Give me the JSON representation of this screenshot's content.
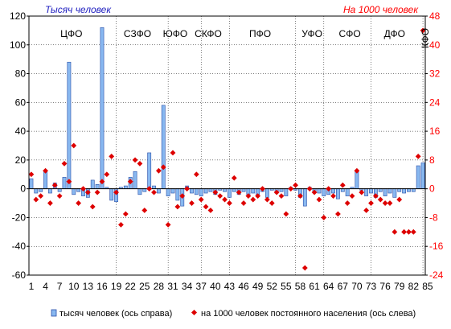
{
  "chart_data": {
    "type": "bar+scatter",
    "left_axis_title": "Тысяч человек",
    "right_axis_title": "На 1000 человек",
    "left_axis": {
      "min": -60,
      "max": 120,
      "step": 20,
      "tick_labels": [
        "-60",
        "-40",
        "-20",
        "0",
        "20",
        "40",
        "60",
        "80",
        "100",
        "120"
      ]
    },
    "right_axis": {
      "min": -24,
      "max": 48,
      "step": 8,
      "tick_labels": [
        "-24",
        "-16",
        "-8",
        "0",
        "8",
        "16",
        "24",
        "32",
        "40",
        "48"
      ]
    },
    "x_tick_labels": [
      "1",
      "4",
      "7",
      "10",
      "13",
      "16",
      "19",
      "22",
      "25",
      "28",
      "31",
      "34",
      "37",
      "40",
      "43",
      "46",
      "49",
      "52",
      "55",
      "58",
      "61",
      "64",
      "67",
      "70",
      "73",
      "76",
      "79",
      "82",
      "85"
    ],
    "x_tick_positions": [
      1,
      4,
      7,
      10,
      13,
      16,
      19,
      22,
      25,
      28,
      31,
      34,
      37,
      40,
      43,
      46,
      49,
      52,
      55,
      58,
      61,
      64,
      67,
      70,
      73,
      76,
      79,
      82,
      85
    ],
    "regions": [
      {
        "label": "ЦФО",
        "center": 9
      },
      {
        "label": "СЗФО",
        "center": 23
      },
      {
        "label": "ЮФО",
        "center": 31
      },
      {
        "label": "СКФО",
        "center": 38
      },
      {
        "label": "ПФО",
        "center": 49
      },
      {
        "label": "УФО",
        "center": 60
      },
      {
        "label": "СФО",
        "center": 68
      },
      {
        "label": "ДФО",
        "center": 77.5
      },
      {
        "label": "КФО",
        "center": 84,
        "vertical": true
      }
    ],
    "region_separators": [
      18.5,
      29.5,
      36.5,
      42.5,
      56.5,
      62.5,
      72.5,
      83.5
    ],
    "series": [
      {
        "name": "тысяч человек (ось справа)",
        "kind": "bar",
        "color": "#88b8f0",
        "values": [
          7,
          -3,
          -2,
          12,
          -3,
          4,
          -2,
          8,
          88,
          -4,
          -2,
          -5,
          -6,
          6,
          3,
          112,
          1,
          -8,
          -9,
          1,
          2,
          8,
          12,
          -4,
          -2,
          25,
          2,
          -3,
          58,
          -5,
          -3,
          -8,
          -12,
          2,
          -3,
          -4,
          -5,
          -3,
          -2,
          -4,
          -1,
          -2,
          -6,
          -2,
          -4,
          -2,
          -4,
          -3,
          -4,
          -2,
          -6,
          -1,
          -3,
          -2,
          -5,
          1,
          -1,
          -6,
          -12,
          1,
          -2,
          -3,
          -5,
          -4,
          -3,
          -7,
          -2,
          -5,
          1,
          12,
          -1,
          -5,
          -3,
          -6,
          -2,
          -5,
          -3,
          -6,
          -2,
          -3,
          -2,
          -2,
          16,
          18
        ]
      },
      {
        "name": "на 1000  человек постоянного населения  (ось слева)",
        "kind": "scatter",
        "color": "#dd0000",
        "values": [
          4,
          -3,
          -2,
          5,
          -4,
          1,
          -2,
          7,
          2,
          12,
          -4,
          0,
          -1,
          -5,
          -1,
          2,
          4,
          9,
          -1,
          -10,
          -7,
          2,
          8,
          7,
          -6,
          0,
          -1,
          5,
          6,
          -10,
          10,
          -5,
          -2,
          0,
          -4,
          4,
          -3,
          -5,
          -6,
          -1,
          -2,
          -3,
          -4,
          3,
          -1,
          -4,
          -2,
          -3,
          -2,
          0,
          -3,
          -4,
          -1,
          -2,
          -7,
          0,
          1,
          -2,
          -22,
          0,
          -1,
          -3,
          -8,
          0,
          -2,
          -7,
          1,
          -4,
          -2,
          5,
          -1,
          -6,
          -4,
          -2,
          -3,
          -4,
          -4,
          -12,
          -3,
          -12,
          -12,
          -12,
          9,
          44
        ]
      }
    ]
  }
}
